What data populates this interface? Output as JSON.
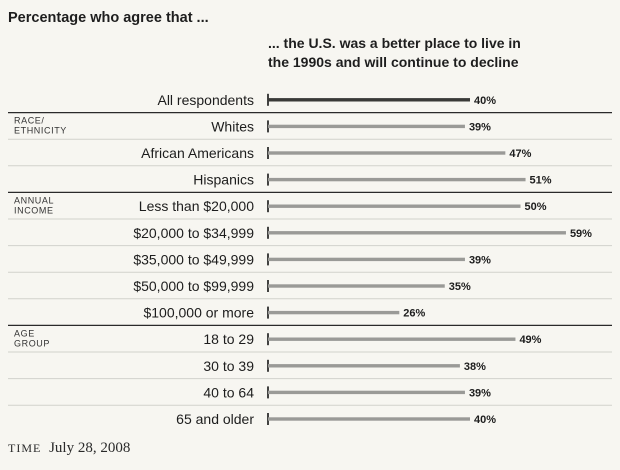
{
  "heading": "Percentage who agree that ...",
  "question": {
    "line1": "... the U.S. was a better place to live in",
    "line2": "the 1990s and will continue to decline"
  },
  "footer": {
    "brand": "TIME",
    "date": "July 28, 2008"
  },
  "colors": {
    "bar": "#9a9a97",
    "bar_highlight": "#3a3a38",
    "axis": "#151515",
    "divider": "#2a2a2a",
    "row_rule": "#d2d2cc"
  },
  "chart_data": {
    "type": "bar",
    "orientation": "horizontal",
    "title": "Percentage who agree that ...",
    "categories": [
      "All respondents",
      "Whites",
      "African Americans",
      "Hispanics",
      "Less than $20,000",
      "$20,000 to $34,999",
      "$35,000 to $49,999",
      "$50,000 to $99,999",
      "$100,000 or more",
      "18 to 29",
      "30 to 39",
      "40 to 64",
      "65 and older"
    ],
    "values": [
      40,
      39,
      47,
      51,
      50,
      59,
      39,
      35,
      26,
      49,
      38,
      39,
      40
    ],
    "value_labels": [
      "40%",
      "39%",
      "47%",
      "51%",
      "50%",
      "59%",
      "39%",
      "35%",
      "26%",
      "49%",
      "38%",
      "39%",
      "40%"
    ],
    "groups": [
      {
        "label_lines": [
          "RACE/",
          "ETHNICITY"
        ],
        "start": 1,
        "end": 3
      },
      {
        "label_lines": [
          "ANNUAL",
          "INCOME"
        ],
        "start": 4,
        "end": 8
      },
      {
        "label_lines": [
          "AGE",
          "GROUP"
        ],
        "start": 9,
        "end": 12
      }
    ],
    "highlight_index": 0,
    "grid": false,
    "legend": "none"
  }
}
